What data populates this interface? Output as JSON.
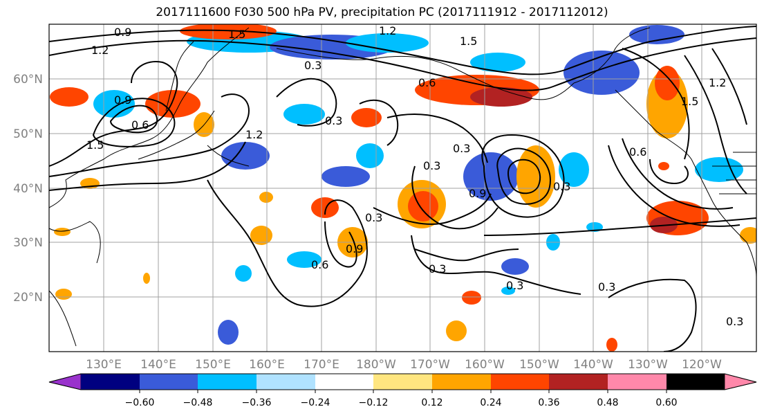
{
  "title": "2017111600 F030 500 hPa PV, precipitation PC (2017111912 - 2017112012)",
  "map": {
    "lat_labels": [
      "60°N",
      "50°N",
      "40°N",
      "30°N",
      "20°N"
    ],
    "lon_labels": [
      "130°E",
      "140°E",
      "150°E",
      "160°E",
      "170°E",
      "180°W",
      "170°W",
      "160°W",
      "150°W",
      "140°W",
      "130°W",
      "120°W"
    ],
    "contour_labels": [
      "0.9",
      "1.2",
      "1.5",
      "0.3",
      "0.6",
      "0.9",
      "1.2",
      "1.5",
      "0.3",
      "0.3",
      "0.3",
      "0.6",
      "0.9",
      "1.2",
      "0.3",
      "0.3",
      "0.3",
      "0.3",
      "0.6",
      "0.3",
      "1.5",
      "1.2",
      "0.6",
      "0.9",
      "0.3",
      "1.5"
    ]
  },
  "colorbar": {
    "colors": [
      "#9932cc",
      "#000080",
      "#3a5bd9",
      "#00bfff",
      "#b0e2ff",
      "#ffffff",
      "#ffe680",
      "#ffa500",
      "#ff4500",
      "#b22222",
      "#ff88aa"
    ],
    "ticks": [
      "−0.60",
      "−0.48",
      "−0.36",
      "−0.24",
      "−0.12",
      "0.12",
      "0.24",
      "0.36",
      "0.48",
      "0.60"
    ]
  }
}
